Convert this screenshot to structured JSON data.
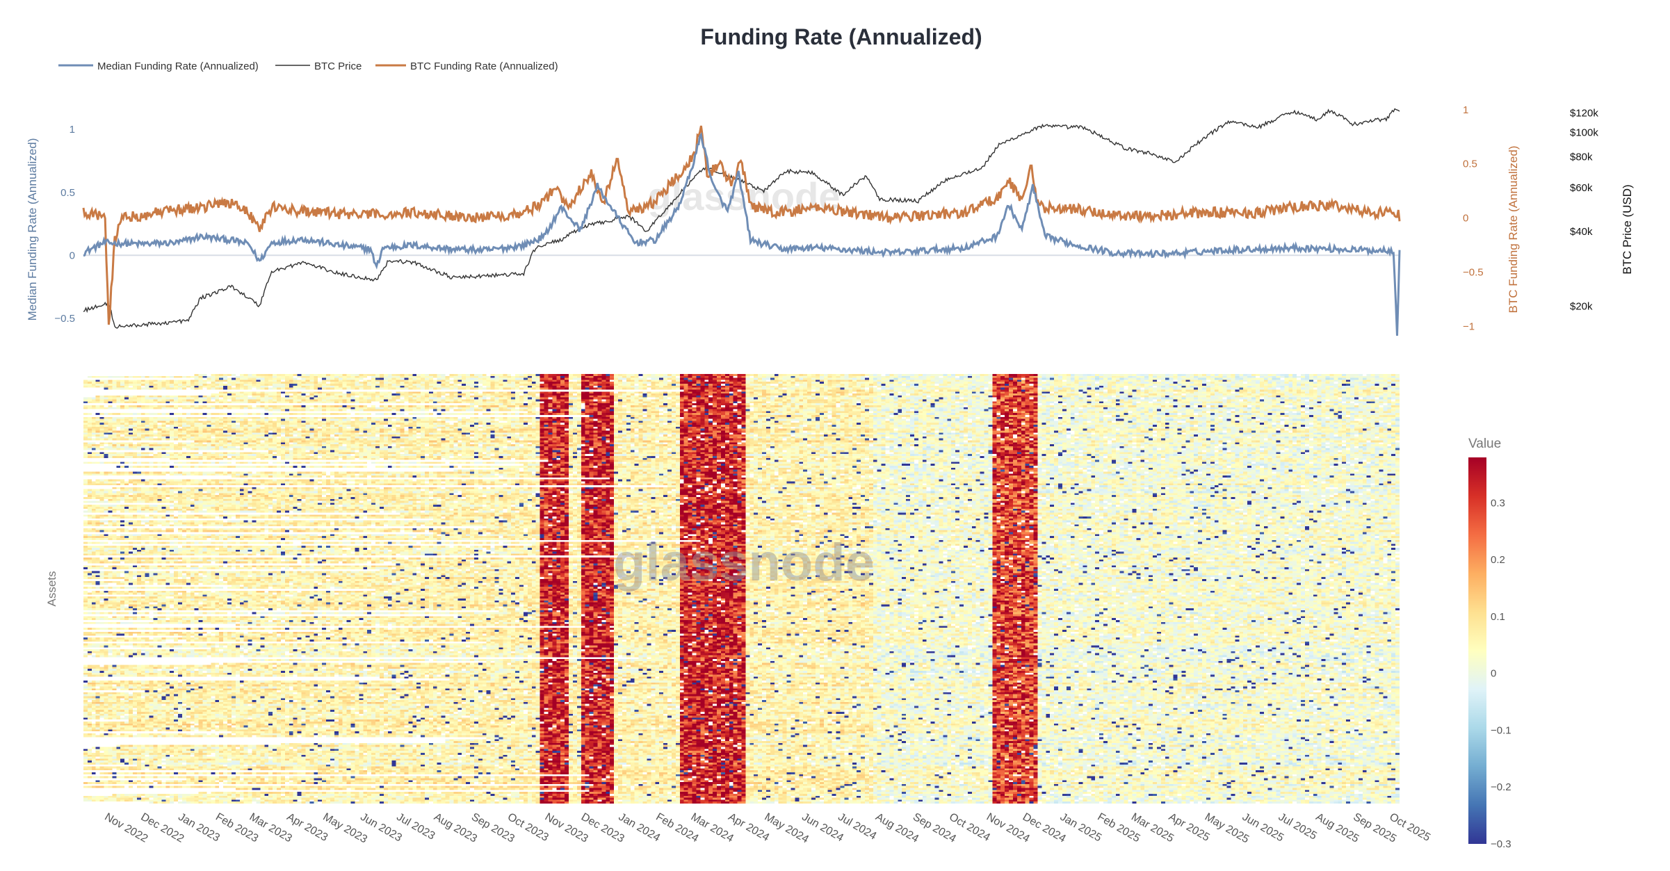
{
  "chart_data": {
    "type": "line+heatmap",
    "title": "Funding Rate (Annualized)",
    "watermark": "glassnode",
    "legend": {
      "placement": "top-left",
      "entries": [
        {
          "name": "Median Funding Rate (Annualized)",
          "color": "#6f8db5"
        },
        {
          "name": "BTC Price",
          "color": "#333333"
        },
        {
          "name": "BTC Funding Rate (Annualized)",
          "color": "#c97a44"
        }
      ]
    },
    "x_ticks": [
      "Nov 2022",
      "Dec 2022",
      "Jan 2023",
      "Feb 2023",
      "Mar 2023",
      "Apr 2023",
      "May 2023",
      "Jun 2023",
      "Jul 2023",
      "Aug 2023",
      "Sep 2023",
      "Oct 2023",
      "Nov 2023",
      "Dec 2023",
      "Jan 2024",
      "Feb 2024",
      "Mar 2024",
      "Apr 2024",
      "May 2024",
      "Jun 2024",
      "Jul 2024",
      "Aug 2024",
      "Sep 2024",
      "Oct 2024",
      "Nov 2024",
      "Dec 2024",
      "Jan 2025",
      "Feb 2025",
      "Mar 2025",
      "Apr 2025",
      "May 2025",
      "Jun 2025",
      "Jul 2025",
      "Aug 2025",
      "Sep 2025",
      "Oct 2025"
    ],
    "x_range": [
      "2022-10-15",
      "2025-10-10"
    ],
    "line_panel": {
      "median_axis": {
        "label": "Median Funding Rate (Annualized)",
        "range": [
          -0.65,
          1.2
        ],
        "ticks": [
          {
            "v": 1,
            "t": "1"
          },
          {
            "v": 0.5,
            "t": "0.5"
          },
          {
            "v": 0,
            "t": "0"
          },
          {
            "v": -0.5,
            "t": "−0.5"
          }
        ]
      },
      "btc_funding_axis": {
        "label": "BTC Funding Rate (Annualized)",
        "range": [
          -1.1,
          1.05
        ],
        "ticks": [
          {
            "v": 1,
            "t": "1"
          },
          {
            "v": 0.5,
            "t": "0.5"
          },
          {
            "v": 0,
            "t": "0"
          },
          {
            "v": -0.5,
            "t": "−0.5"
          },
          {
            "v": -1,
            "t": "−1"
          }
        ]
      },
      "price_axis": {
        "label": "BTC Price (USD)",
        "scale": "log",
        "range": [
          15000,
          130000
        ],
        "ticks": [
          {
            "v": 120000,
            "t": "$120k"
          },
          {
            "v": 100000,
            "t": "$100k"
          },
          {
            "v": 80000,
            "t": "$80k"
          },
          {
            "v": 60000,
            "t": "$60k"
          },
          {
            "v": 40000,
            "t": "$40k"
          },
          {
            "v": 20000,
            "t": "$20k"
          }
        ]
      },
      "series": [
        {
          "name": "Median Funding Rate (Annualized)",
          "axis": "median",
          "color": "#6f8db5",
          "points": [
            [
              "2022-10-15",
              0.02
            ],
            [
              "2022-11-01",
              0.1
            ],
            [
              "2022-12-01",
              0.09
            ],
            [
              "2023-01-01",
              0.1
            ],
            [
              "2023-01-20",
              0.15
            ],
            [
              "2023-02-15",
              0.12
            ],
            [
              "2023-03-01",
              0.09
            ],
            [
              "2023-03-10",
              -0.05
            ],
            [
              "2023-03-20",
              0.1
            ],
            [
              "2023-04-15",
              0.13
            ],
            [
              "2023-05-15",
              0.08
            ],
            [
              "2023-06-10",
              0.05
            ],
            [
              "2023-06-15",
              -0.1
            ],
            [
              "2023-06-20",
              0.06
            ],
            [
              "2023-07-15",
              0.08
            ],
            [
              "2023-08-15",
              0.05
            ],
            [
              "2023-09-15",
              0.04
            ],
            [
              "2023-10-15",
              0.08
            ],
            [
              "2023-11-01",
              0.15
            ],
            [
              "2023-11-15",
              0.38
            ],
            [
              "2023-12-01",
              0.2
            ],
            [
              "2023-12-15",
              0.55
            ],
            [
              "2024-01-01",
              0.3
            ],
            [
              "2024-01-15",
              0.1
            ],
            [
              "2024-02-01",
              0.12
            ],
            [
              "2024-02-20",
              0.38
            ],
            [
              "2024-03-01",
              0.65
            ],
            [
              "2024-03-10",
              0.96
            ],
            [
              "2024-03-20",
              0.55
            ],
            [
              "2024-04-01",
              0.35
            ],
            [
              "2024-04-10",
              0.65
            ],
            [
              "2024-04-20",
              0.12
            ],
            [
              "2024-05-15",
              0.05
            ],
            [
              "2024-06-15",
              0.06
            ],
            [
              "2024-07-15",
              0.04
            ],
            [
              "2024-08-15",
              0.02
            ],
            [
              "2024-09-15",
              0.04
            ],
            [
              "2024-10-15",
              0.06
            ],
            [
              "2024-11-10",
              0.15
            ],
            [
              "2024-11-20",
              0.4
            ],
            [
              "2024-12-01",
              0.2
            ],
            [
              "2024-12-10",
              0.55
            ],
            [
              "2024-12-20",
              0.15
            ],
            [
              "2025-01-15",
              0.08
            ],
            [
              "2025-02-15",
              0.02
            ],
            [
              "2025-03-15",
              0.01
            ],
            [
              "2025-04-15",
              0.02
            ],
            [
              "2025-05-15",
              0.04
            ],
            [
              "2025-06-15",
              0.05
            ],
            [
              "2025-07-15",
              0.06
            ],
            [
              "2025-08-15",
              0.05
            ],
            [
              "2025-09-15",
              0.04
            ],
            [
              "2025-10-05",
              0.04
            ],
            [
              "2025-10-08",
              -0.62
            ],
            [
              "2025-10-10",
              0.03
            ]
          ]
        },
        {
          "name": "BTC Price",
          "axis": "price",
          "color": "#333333",
          "points": [
            [
              "2022-10-15",
              19200
            ],
            [
              "2022-11-05",
              20500
            ],
            [
              "2022-11-10",
              16500
            ],
            [
              "2022-12-15",
              17000
            ],
            [
              "2023-01-10",
              17500
            ],
            [
              "2023-01-20",
              21500
            ],
            [
              "2023-02-15",
              24000
            ],
            [
              "2023-03-10",
              20000
            ],
            [
              "2023-03-20",
              27500
            ],
            [
              "2023-04-15",
              30000
            ],
            [
              "2023-05-15",
              27000
            ],
            [
              "2023-06-15",
              25500
            ],
            [
              "2023-06-25",
              30500
            ],
            [
              "2023-07-15",
              30000
            ],
            [
              "2023-08-17",
              26000
            ],
            [
              "2023-09-15",
              26500
            ],
            [
              "2023-10-15",
              27000
            ],
            [
              "2023-10-25",
              34500
            ],
            [
              "2023-11-15",
              37000
            ],
            [
              "2023-12-05",
              42000
            ],
            [
              "2024-01-10",
              46000
            ],
            [
              "2024-01-25",
              40000
            ],
            [
              "2024-02-15",
              52000
            ],
            [
              "2024-03-13",
              72000
            ],
            [
              "2024-04-15",
              63000
            ],
            [
              "2024-05-01",
              58000
            ],
            [
              "2024-05-20",
              70000
            ],
            [
              "2024-06-10",
              69000
            ],
            [
              "2024-07-05",
              56000
            ],
            [
              "2024-07-25",
              67000
            ],
            [
              "2024-08-05",
              54000
            ],
            [
              "2024-09-06",
              53000
            ],
            [
              "2024-09-30",
              65000
            ],
            [
              "2024-10-29",
              72000
            ],
            [
              "2024-11-12",
              89000
            ],
            [
              "2024-12-17",
              106000
            ],
            [
              "2025-01-20",
              105000
            ],
            [
              "2025-02-25",
              86000
            ],
            [
              "2025-03-15",
              83000
            ],
            [
              "2025-04-08",
              76000
            ],
            [
              "2025-05-01",
              95000
            ],
            [
              "2025-05-22",
              111000
            ],
            [
              "2025-06-15",
              105000
            ],
            [
              "2025-07-14",
              122000
            ],
            [
              "2025-08-02",
              113000
            ],
            [
              "2025-08-14",
              123000
            ],
            [
              "2025-09-01",
              108000
            ],
            [
              "2025-09-30",
              114000
            ],
            [
              "2025-10-06",
              125000
            ],
            [
              "2025-10-10",
              121000
            ]
          ]
        },
        {
          "name": "BTC Funding Rate (Annualized)",
          "axis": "btc_funding",
          "color": "#c97a44",
          "points": [
            [
              "2022-10-15",
              0.05
            ],
            [
              "2022-10-28",
              0.02
            ],
            [
              "2022-11-02",
              -0.02
            ],
            [
              "2022-11-05",
              -1.0
            ],
            [
              "2022-11-10",
              -0.2
            ],
            [
              "2022-11-15",
              0.0
            ],
            [
              "2022-12-01",
              0.02
            ],
            [
              "2022-12-15",
              0.05
            ],
            [
              "2023-01-20",
              0.1
            ],
            [
              "2023-02-15",
              0.15
            ],
            [
              "2023-03-01",
              0.05
            ],
            [
              "2023-03-10",
              -0.1
            ],
            [
              "2023-03-20",
              0.1
            ],
            [
              "2023-04-15",
              0.06
            ],
            [
              "2023-05-15",
              0.04
            ],
            [
              "2023-06-15",
              0.03
            ],
            [
              "2023-07-15",
              0.05
            ],
            [
              "2023-08-15",
              0.02
            ],
            [
              "2023-09-15",
              0.01
            ],
            [
              "2023-10-15",
              0.05
            ],
            [
              "2023-11-01",
              0.15
            ],
            [
              "2023-11-10",
              0.3
            ],
            [
              "2023-11-20",
              0.1
            ],
            [
              "2023-12-10",
              0.4
            ],
            [
              "2023-12-20",
              0.15
            ],
            [
              "2024-01-01",
              0.55
            ],
            [
              "2024-01-10",
              0.05
            ],
            [
              "2024-02-01",
              0.15
            ],
            [
              "2024-02-20",
              0.4
            ],
            [
              "2024-03-05",
              0.6
            ],
            [
              "2024-03-10",
              0.9
            ],
            [
              "2024-03-15",
              0.4
            ],
            [
              "2024-03-25",
              0.5
            ],
            [
              "2024-04-05",
              0.3
            ],
            [
              "2024-04-12",
              0.55
            ],
            [
              "2024-04-20",
              0.1
            ],
            [
              "2024-05-15",
              0.05
            ],
            [
              "2024-06-15",
              0.1
            ],
            [
              "2024-07-15",
              0.05
            ],
            [
              "2024-08-15",
              0.0
            ],
            [
              "2024-09-15",
              0.03
            ],
            [
              "2024-10-15",
              0.05
            ],
            [
              "2024-11-12",
              0.2
            ],
            [
              "2024-11-20",
              0.35
            ],
            [
              "2024-12-01",
              0.15
            ],
            [
              "2024-12-08",
              0.5
            ],
            [
              "2024-12-15",
              0.1
            ],
            [
              "2025-01-15",
              0.08
            ],
            [
              "2025-02-15",
              0.03
            ],
            [
              "2025-03-15",
              0.02
            ],
            [
              "2025-04-15",
              0.04
            ],
            [
              "2025-05-15",
              0.05
            ],
            [
              "2025-06-15",
              0.05
            ],
            [
              "2025-07-15",
              0.1
            ],
            [
              "2025-08-15",
              0.12
            ],
            [
              "2025-09-15",
              0.05
            ],
            [
              "2025-10-05",
              0.06
            ],
            [
              "2025-10-10",
              0.02
            ]
          ]
        }
      ]
    },
    "heatmap": {
      "y_label": "Assets",
      "colorbar": {
        "title": "Value",
        "range": [
          -0.3,
          0.38
        ],
        "ticks": [
          {
            "v": 0.3,
            "t": "0.3"
          },
          {
            "v": 0.2,
            "t": "0.2"
          },
          {
            "v": 0.1,
            "t": "0.1"
          },
          {
            "v": 0,
            "t": "0"
          },
          {
            "v": -0.1,
            "t": "−0.1"
          },
          {
            "v": -0.2,
            "t": "−0.2"
          },
          {
            "v": -0.3,
            "t": "−0.3"
          }
        ],
        "colors": [
          "#313695",
          "#4575b4",
          "#74add1",
          "#abd9e9",
          "#e0f3f8",
          "#ffffbf",
          "#fee090",
          "#fdae61",
          "#f46d43",
          "#d73027",
          "#a50026"
        ]
      },
      "high_value_periods": [
        [
          "2023-10-28",
          "2023-11-20"
        ],
        [
          "2023-12-01",
          "2023-12-28"
        ],
        [
          "2024-02-20",
          "2024-04-15"
        ],
        [
          "2024-11-08",
          "2024-12-16"
        ]
      ]
    }
  }
}
